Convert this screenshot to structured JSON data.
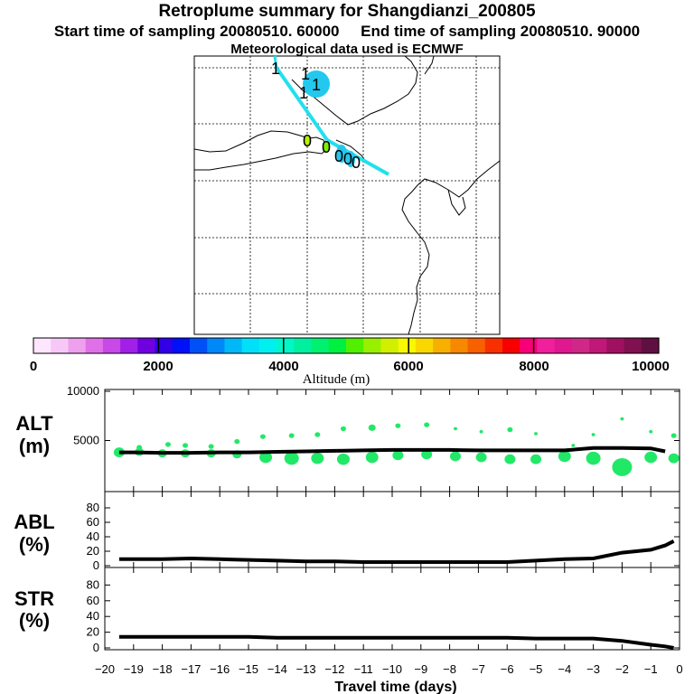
{
  "header": {
    "title": "Retroplume summary for Shangdianzi_200805",
    "start_label": "Start time of sampling 20080510. 60000",
    "end_label": "End time of sampling 20080510. 90000",
    "meteo_label": "Meteorological data used is ECMWF"
  },
  "map": {
    "plume_color": "#22e0ee",
    "markers": [
      {
        "label": "1"
      },
      {
        "label": "1"
      },
      {
        "label": "1"
      },
      {
        "label": "1"
      },
      {
        "label": "0"
      },
      {
        "label": "0"
      },
      {
        "label": "0"
      },
      {
        "label": "0"
      },
      {
        "label": "0"
      }
    ]
  },
  "colorbar": {
    "label": "Altitude (m)",
    "ticks": [
      "0",
      "2000",
      "4000",
      "6000",
      "8000",
      "10000"
    ],
    "colors": [
      "#ffe6ff",
      "#f7c8f7",
      "#eea0ee",
      "#e070e8",
      "#c848e8",
      "#a020e8",
      "#7000e0",
      "#3000e8",
      "#0010f8",
      "#0050f8",
      "#0088f8",
      "#00b8f8",
      "#00e0f8",
      "#00f0f0",
      "#00f8c8",
      "#00f0a0",
      "#00f070",
      "#00f040",
      "#50f000",
      "#98f000",
      "#d0f000",
      "#f8f800",
      "#f8d800",
      "#f8b000",
      "#f88800",
      "#f86000",
      "#f83000",
      "#f80000",
      "#f80078",
      "#f0209c",
      "#e01890",
      "#d02888",
      "#c01878",
      "#a01060",
      "#801050",
      "#601040"
    ]
  },
  "chart_data": [
    {
      "type": "line",
      "name": "ALT",
      "ylabel_main": "ALT",
      "ylabel_unit": "(m)",
      "ylim": [
        0,
        10000
      ],
      "ytick_labels": [
        "5000",
        "10000"
      ],
      "yticks": [
        5000,
        10000
      ],
      "x": [
        -19.5,
        -19,
        -18,
        -17,
        -16,
        -15,
        -14,
        -13,
        -12,
        -11,
        -10,
        -9,
        -8,
        -7,
        -6,
        -5,
        -4,
        -3,
        -2,
        -1,
        -0.5
      ],
      "values": [
        3800,
        3800,
        3750,
        3750,
        3800,
        3800,
        3850,
        3900,
        3950,
        4000,
        4050,
        4050,
        4050,
        4000,
        4000,
        4000,
        4000,
        4250,
        4250,
        4200,
        3900
      ],
      "bubbles": [
        {
          "x": -19.5,
          "y": 3800,
          "size": 6
        },
        {
          "x": -18.8,
          "y": 3850,
          "size": 5
        },
        {
          "x": -18,
          "y": 3700,
          "size": 5
        },
        {
          "x": -17.2,
          "y": 3700,
          "size": 5
        },
        {
          "x": -16.3,
          "y": 3700,
          "size": 5
        },
        {
          "x": -15.4,
          "y": 3600,
          "size": 5
        },
        {
          "x": -14.4,
          "y": 3300,
          "size": 7
        },
        {
          "x": -13.5,
          "y": 3200,
          "size": 8
        },
        {
          "x": -12.6,
          "y": 3200,
          "size": 7
        },
        {
          "x": -11.7,
          "y": 3100,
          "size": 7
        },
        {
          "x": -10.7,
          "y": 3300,
          "size": 7
        },
        {
          "x": -9.8,
          "y": 3500,
          "size": 6
        },
        {
          "x": -8.8,
          "y": 3600,
          "size": 6
        },
        {
          "x": -7.8,
          "y": 3400,
          "size": 6
        },
        {
          "x": -6.9,
          "y": 3300,
          "size": 6
        },
        {
          "x": -5.9,
          "y": 3100,
          "size": 6
        },
        {
          "x": -5,
          "y": 3100,
          "size": 6
        },
        {
          "x": -4,
          "y": 3400,
          "size": 7
        },
        {
          "x": -3,
          "y": 3200,
          "size": 8
        },
        {
          "x": -2,
          "y": 2300,
          "size": 11
        },
        {
          "x": -1,
          "y": 3300,
          "size": 7
        },
        {
          "x": -0.2,
          "y": 3200,
          "size": 6
        },
        {
          "x": -18.8,
          "y": 4300,
          "size": 3
        },
        {
          "x": -17.8,
          "y": 4600,
          "size": 3
        },
        {
          "x": -17.2,
          "y": 4500,
          "size": 3
        },
        {
          "x": -16.3,
          "y": 4400,
          "size": 3
        },
        {
          "x": -15.4,
          "y": 4900,
          "size": 3
        },
        {
          "x": -14.5,
          "y": 5400,
          "size": 3
        },
        {
          "x": -13.5,
          "y": 5500,
          "size": 3
        },
        {
          "x": -12.6,
          "y": 5600,
          "size": 3
        },
        {
          "x": -11.7,
          "y": 6200,
          "size": 3
        },
        {
          "x": -10.7,
          "y": 6300,
          "size": 4
        },
        {
          "x": -9.8,
          "y": 6500,
          "size": 3
        },
        {
          "x": -8.8,
          "y": 6600,
          "size": 3
        },
        {
          "x": -7.8,
          "y": 6200,
          "size": 2
        },
        {
          "x": -6.9,
          "y": 5900,
          "size": 2
        },
        {
          "x": -5.9,
          "y": 6100,
          "size": 3
        },
        {
          "x": -5,
          "y": 5700,
          "size": 2
        },
        {
          "x": -3.7,
          "y": 4500,
          "size": 2
        },
        {
          "x": -3,
          "y": 5600,
          "size": 2
        },
        {
          "x": -2,
          "y": 7200,
          "size": 2
        },
        {
          "x": -1,
          "y": 5900,
          "size": 2
        },
        {
          "x": -0.2,
          "y": 5500,
          "size": 3
        }
      ]
    },
    {
      "type": "line",
      "name": "ABL",
      "ylabel_main": "ABL",
      "ylabel_unit": "(%)",
      "ylim": [
        0,
        100
      ],
      "ytick_labels": [
        "0",
        "20",
        "40",
        "60",
        "80"
      ],
      "yticks": [
        0,
        20,
        40,
        60,
        80
      ],
      "x": [
        -19.5,
        -18,
        -17,
        -16,
        -15,
        -14,
        -13,
        -12,
        -11,
        -10,
        -9,
        -8,
        -7,
        -6,
        -5,
        -4,
        -3,
        -2,
        -1,
        -0.5,
        -0.2
      ],
      "values": [
        9,
        9,
        10,
        9,
        8,
        7,
        6,
        6,
        5,
        5,
        5,
        5,
        5,
        5,
        7,
        9,
        10,
        18,
        22,
        28,
        34
      ]
    },
    {
      "type": "line",
      "name": "STR",
      "ylabel_main": "STR",
      "ylabel_unit": "(%)",
      "ylim": [
        0,
        100
      ],
      "ytick_labels": [
        "0",
        "20",
        "40",
        "60",
        "80"
      ],
      "yticks": [
        0,
        20,
        40,
        60,
        80
      ],
      "x": [
        -19.5,
        -18,
        -17,
        -16,
        -15,
        -14,
        -13,
        -12,
        -11,
        -10,
        -9,
        -8,
        -7,
        -6,
        -5,
        -4,
        -3,
        -2,
        -1,
        -0.5,
        -0.2
      ],
      "values": [
        14,
        14,
        14,
        14,
        14,
        13,
        13,
        13,
        13,
        13,
        13,
        13,
        13,
        13,
        12,
        12,
        12,
        9,
        4,
        2,
        0
      ],
      "xlabel": "Travel time (days)",
      "xtick_values": [
        -20,
        -19,
        -18,
        -17,
        -16,
        -15,
        -14,
        -13,
        -12,
        -11,
        -10,
        -9,
        -8,
        -7,
        -6,
        -5,
        -4,
        -3,
        -2,
        -1,
        0
      ],
      "xtick_labels": [
        "−20",
        "−19",
        "−18",
        "−17",
        "−16",
        "−15",
        "−14",
        "−13",
        "−12",
        "−11",
        "−10",
        "−9",
        "−8",
        "−7",
        "−6",
        "−5",
        "−4",
        "−3",
        "−2",
        "−1",
        "0"
      ]
    }
  ]
}
